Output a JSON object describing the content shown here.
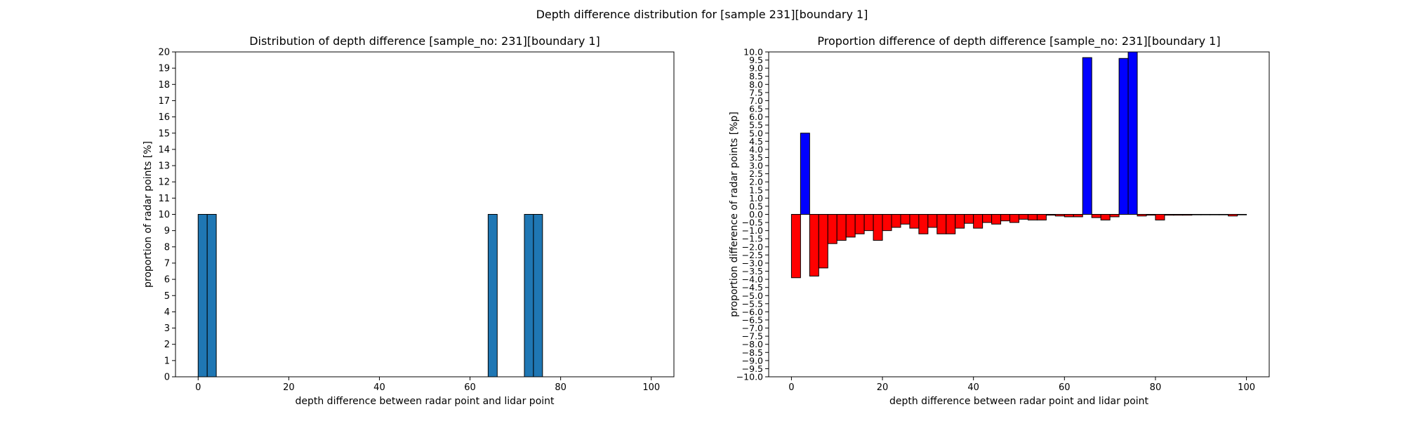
{
  "figure": {
    "suptitle": "Depth difference distribution for [sample 231][boundary 1]"
  },
  "chart_data": [
    {
      "type": "bar",
      "title": "Distribution of depth difference [sample_no: 231][boundary 1]",
      "xlabel": "depth difference between radar point and lidar point",
      "ylabel": "proportion of radar points [%]",
      "xlim": [
        -5,
        105
      ],
      "ylim": [
        0,
        20
      ],
      "xticks": [
        0,
        20,
        40,
        60,
        80,
        100
      ],
      "yticks": [
        0,
        1,
        2,
        3,
        4,
        5,
        6,
        7,
        8,
        9,
        10,
        11,
        12,
        13,
        14,
        15,
        16,
        17,
        18,
        19,
        20
      ],
      "bin_width": 2,
      "bar_color": "#1f77b4",
      "edge_color": "#000000",
      "bins": [
        0,
        2,
        64,
        72,
        74
      ],
      "values": [
        10,
        10,
        10,
        10,
        10
      ]
    },
    {
      "type": "bar",
      "title": "Proportion difference of depth difference [sample_no: 231][boundary 1]",
      "xlabel": "depth difference between radar point and lidar point",
      "ylabel": "proportion difference of radar points [%p]",
      "xlim": [
        -5,
        105
      ],
      "ylim": [
        -10,
        10
      ],
      "xticks": [
        0,
        20,
        40,
        60,
        80,
        100
      ],
      "ytick_step": 0.5,
      "bin_width": 2,
      "positive_color": "#0000ff",
      "negative_color": "#ff0000",
      "edge_color": "#000000",
      "bins": [
        0,
        2,
        4,
        6,
        8,
        10,
        12,
        14,
        16,
        18,
        20,
        22,
        24,
        26,
        28,
        30,
        32,
        34,
        36,
        38,
        40,
        42,
        44,
        46,
        48,
        50,
        52,
        54,
        56,
        58,
        60,
        62,
        64,
        66,
        68,
        70,
        72,
        74,
        76,
        78,
        80,
        82,
        84,
        86,
        88,
        90,
        92,
        94,
        96,
        98
      ],
      "values": [
        -3.9,
        5.0,
        -3.8,
        -3.3,
        -1.8,
        -1.6,
        -1.4,
        -1.2,
        -1.0,
        -1.6,
        -1.0,
        -0.8,
        -0.6,
        -0.85,
        -1.2,
        -0.8,
        -1.2,
        -1.2,
        -0.85,
        -0.55,
        -0.85,
        -0.5,
        -0.6,
        -0.4,
        -0.5,
        -0.3,
        -0.35,
        -0.35,
        -0.05,
        -0.1,
        -0.15,
        -0.15,
        9.65,
        -0.2,
        -0.35,
        -0.15,
        9.6,
        10.0,
        -0.1,
        -0.05,
        -0.35,
        -0.05,
        -0.05,
        -0.05,
        -0.03,
        -0.03,
        -0.03,
        -0.03,
        -0.1,
        -0.03
      ]
    }
  ]
}
